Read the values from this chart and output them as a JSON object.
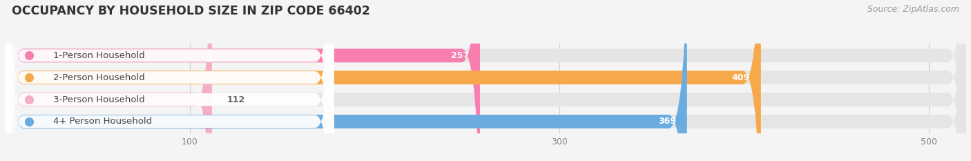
{
  "title": "OCCUPANCY BY HOUSEHOLD SIZE IN ZIP CODE 66402",
  "source": "Source: ZipAtlas.com",
  "categories": [
    "1-Person Household",
    "2-Person Household",
    "3-Person Household",
    "4+ Person Household"
  ],
  "values": [
    257,
    409,
    112,
    369
  ],
  "bar_colors": [
    "#f87eb0",
    "#f5a94a",
    "#f4afc5",
    "#6aace0"
  ],
  "circle_colors": [
    "#f87eb0",
    "#f5a94a",
    "#f4afc5",
    "#6aace0"
  ],
  "xlim": [
    0,
    520
  ],
  "xticks": [
    100,
    300,
    500
  ],
  "background_color": "#f4f4f4",
  "bar_bg_color": "#e5e5e5",
  "label_box_color": "#ffffff",
  "title_fontsize": 12.5,
  "source_fontsize": 9,
  "label_fontsize": 9.5,
  "value_fontsize": 9
}
